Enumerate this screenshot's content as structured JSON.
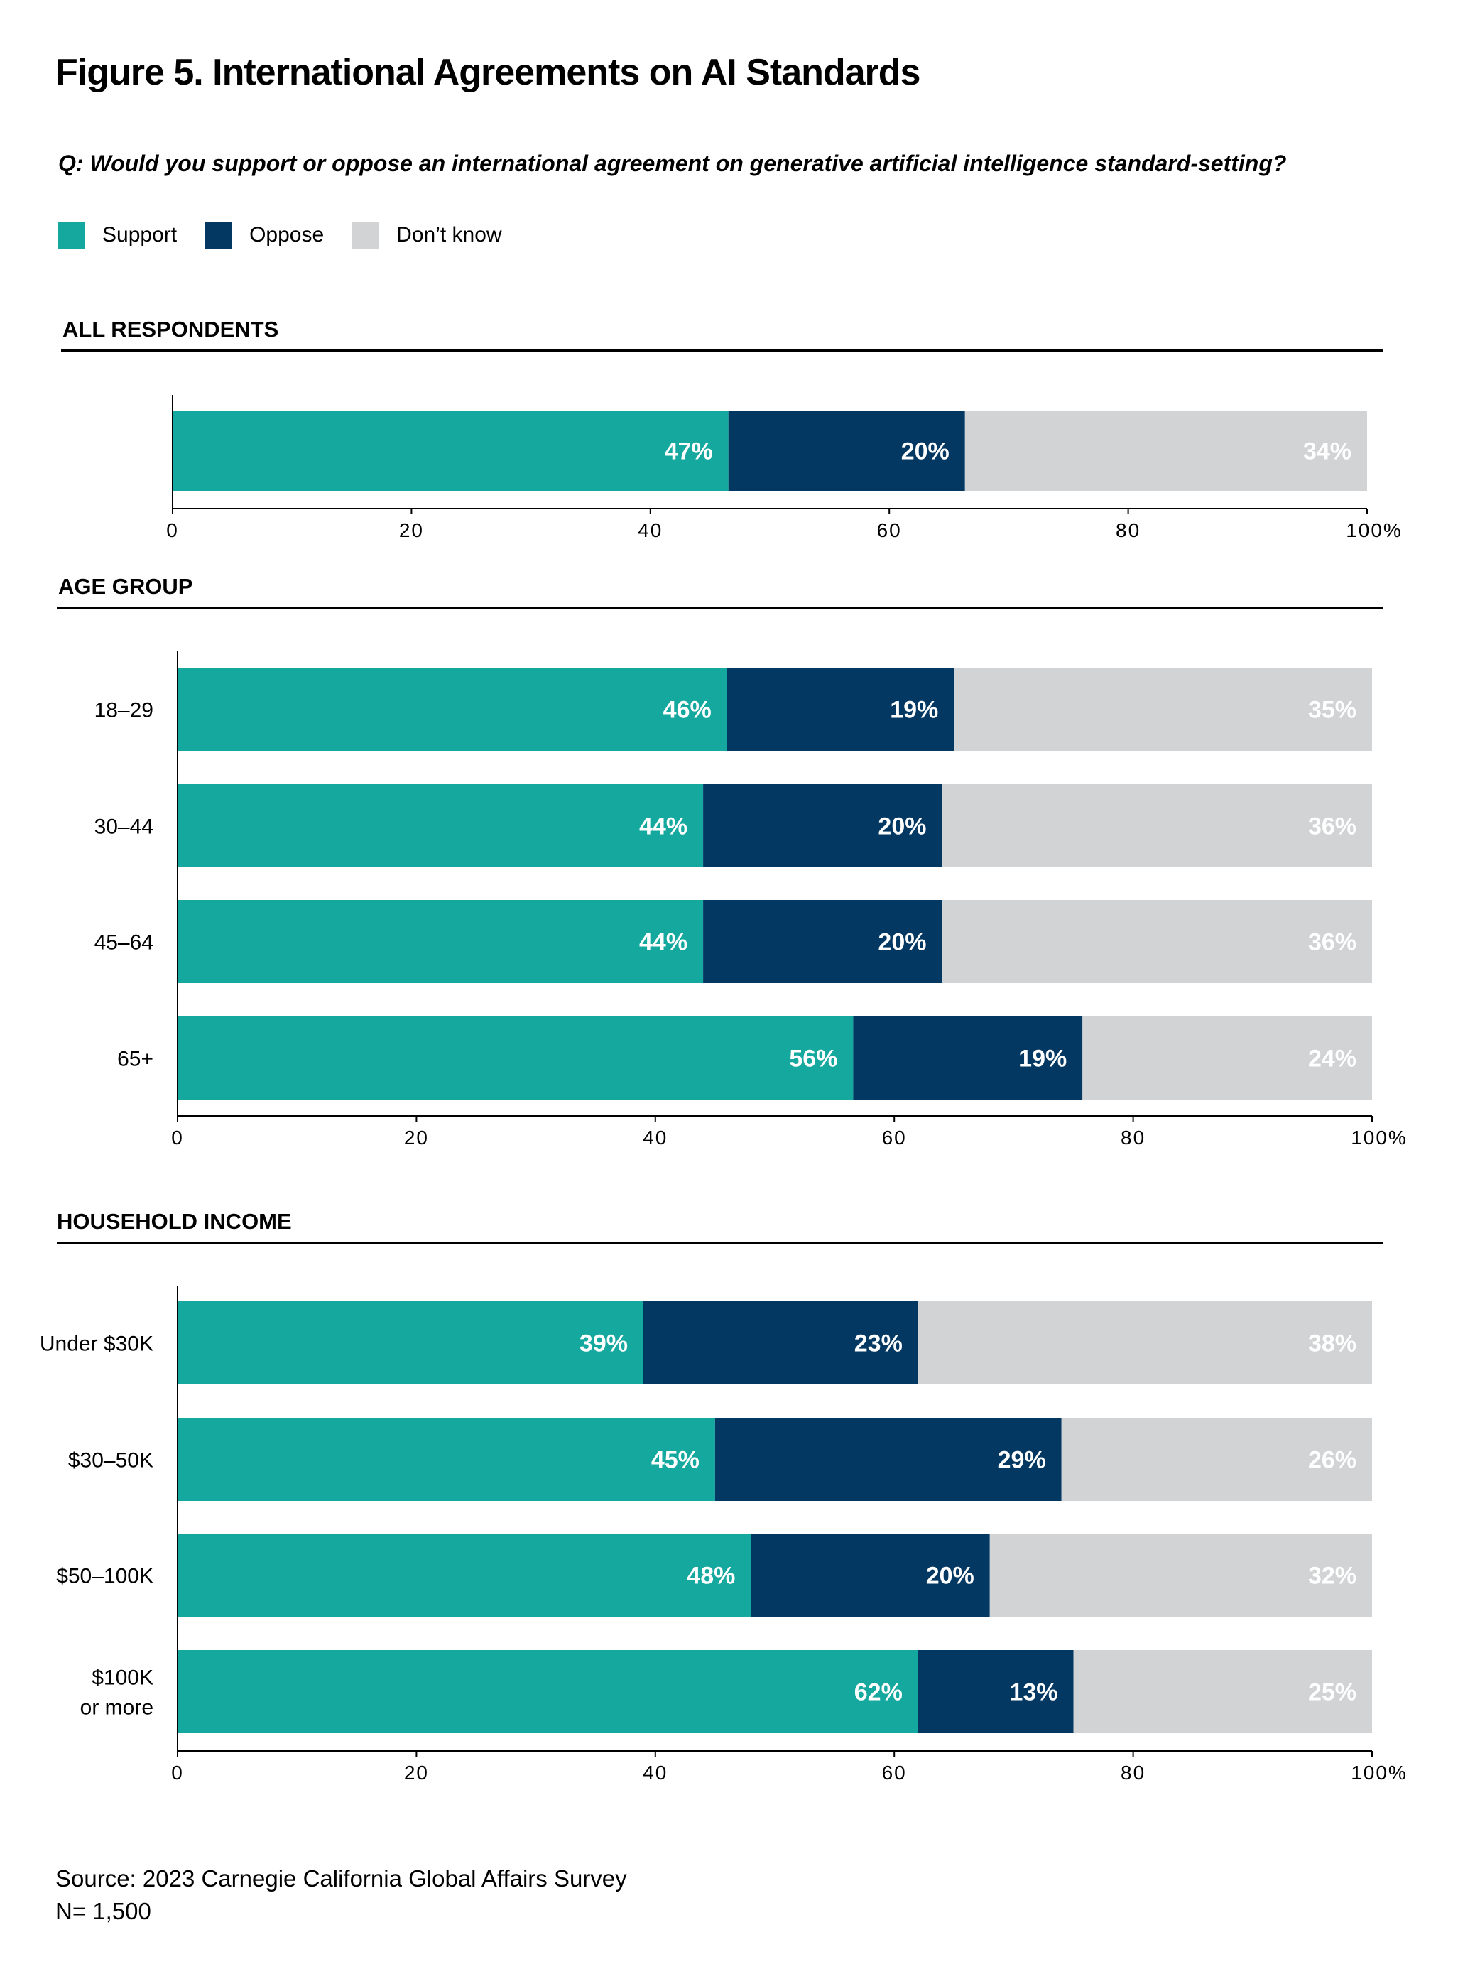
{
  "title": "Figure 5. International Agreements on AI Standards",
  "question": "Q: Would you support or oppose an international agreement on generative artificial intelligence standard-setting?",
  "legend": [
    {
      "label": "Support",
      "color": "#14A89E"
    },
    {
      "label": "Oppose",
      "color": "#033863"
    },
    {
      "label": "Don’t know",
      "color": "#D1D3D4"
    }
  ],
  "chart_data": [
    {
      "type": "bar",
      "orientation": "horizontal",
      "stacked": true,
      "title": "ALL RESPONDENTS",
      "categories": [
        ""
      ],
      "series": [
        {
          "name": "Support",
          "values": [
            47
          ]
        },
        {
          "name": "Oppose",
          "values": [
            20
          ]
        },
        {
          "name": "Don’t know",
          "values": [
            34
          ]
        }
      ],
      "xlim": [
        0,
        100
      ],
      "xticks": [
        "0",
        "20",
        "40",
        "60",
        "80",
        "100%"
      ]
    },
    {
      "type": "bar",
      "orientation": "horizontal",
      "stacked": true,
      "title": "AGE GROUP",
      "categories": [
        "18–29",
        "30–44",
        "45–64",
        "65+"
      ],
      "series": [
        {
          "name": "Support",
          "values": [
            46,
            44,
            44,
            56
          ]
        },
        {
          "name": "Oppose",
          "values": [
            19,
            20,
            20,
            19
          ]
        },
        {
          "name": "Don’t know",
          "values": [
            35,
            36,
            36,
            24
          ]
        }
      ],
      "xlim": [
        0,
        100
      ],
      "xticks": [
        "0",
        "20",
        "40",
        "60",
        "80",
        "100%"
      ]
    },
    {
      "type": "bar",
      "orientation": "horizontal",
      "stacked": true,
      "title": "HOUSEHOLD INCOME",
      "categories": [
        "Under $30K",
        "$30–50K",
        "$50–100K",
        "$100K\nor more"
      ],
      "series": [
        {
          "name": "Support",
          "values": [
            39,
            45,
            48,
            62
          ]
        },
        {
          "name": "Oppose",
          "values": [
            23,
            29,
            20,
            13
          ]
        },
        {
          "name": "Don’t know",
          "values": [
            38,
            26,
            32,
            25
          ]
        }
      ],
      "xlim": [
        0,
        100
      ],
      "xticks": [
        "0",
        "20",
        "40",
        "60",
        "80",
        "100%"
      ]
    }
  ],
  "footer": {
    "source": "Source: 2023 Carnegie California Global Affairs Survey",
    "n": "N= 1,500"
  }
}
